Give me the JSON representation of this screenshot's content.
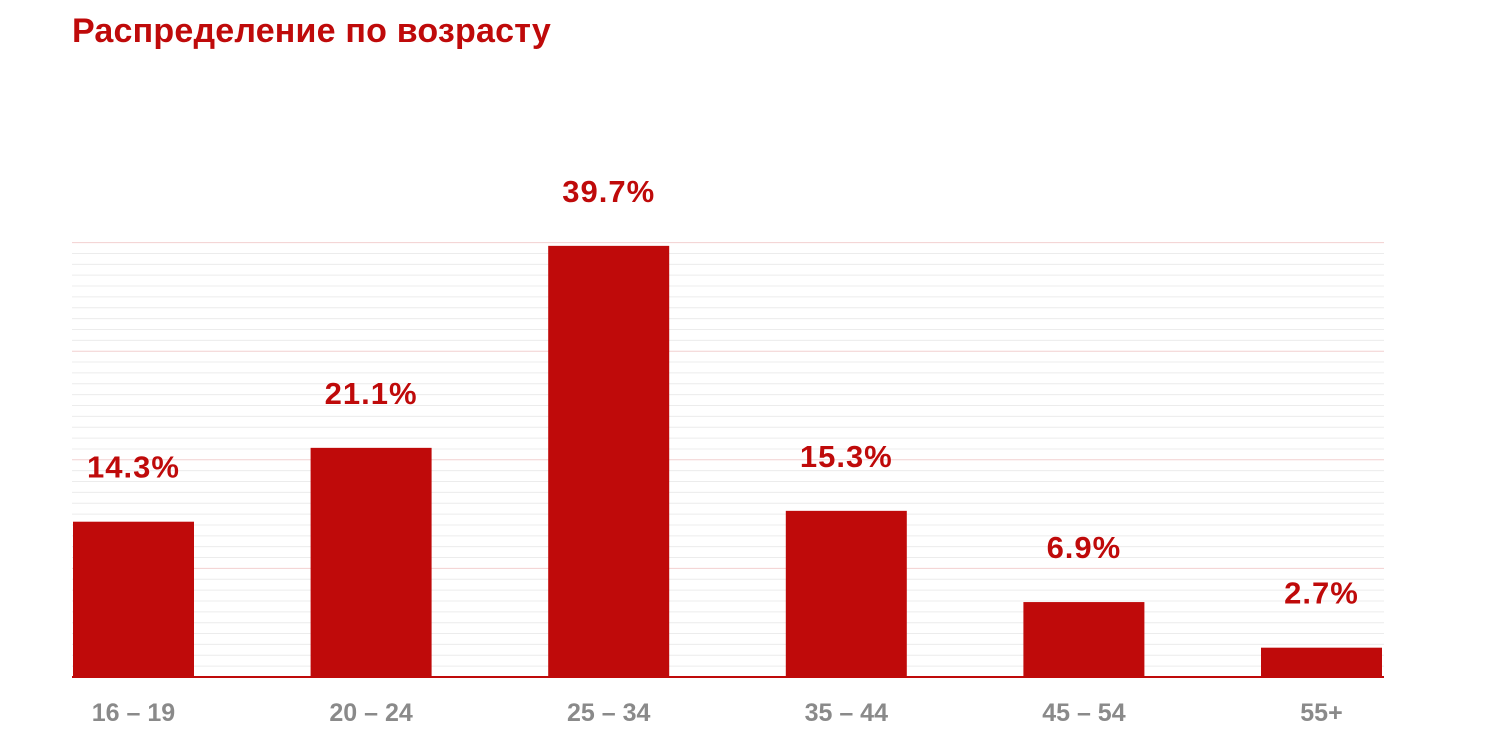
{
  "chart_data": {
    "type": "bar",
    "title": "Распределение по возрасту",
    "categories": [
      "16 – 19",
      "20 – 24",
      "25 – 34",
      "35 – 44",
      "45 – 54",
      "55+"
    ],
    "values": [
      14.3,
      21.1,
      39.7,
      15.3,
      6.9,
      2.7
    ],
    "value_labels": [
      "14.3%",
      "21.1%",
      "39.7%",
      "15.3%",
      "6.9%",
      "2.7%"
    ],
    "xlabel": "",
    "ylabel": "",
    "ylim": [
      0,
      40
    ],
    "grid": true,
    "legend": "none",
    "bar_color": "#bf0a0a",
    "label_color": "#bf0a0a",
    "tick_color": "#8a8a8a",
    "grid_color": "#f2d0d0"
  }
}
